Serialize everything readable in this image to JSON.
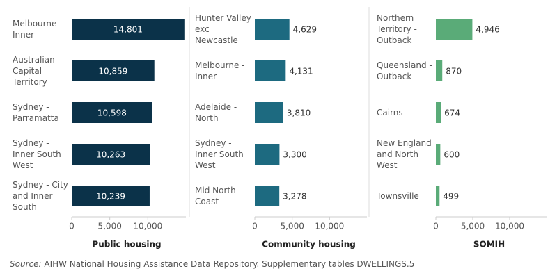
{
  "chart_data": [
    {
      "type": "bar",
      "orientation": "horizontal",
      "x_label": "Public housing",
      "categories": [
        "Melbourne - Inner",
        "Australian Capital Territory",
        "Sydney - Parramatta",
        "Sydney - Inner South West",
        "Sydney - City and Inner South"
      ],
      "values": [
        14801,
        10859,
        10598,
        10263,
        10239
      ],
      "value_labels": [
        "14,801",
        "10,859",
        "10,598",
        "10,263",
        "10,239"
      ],
      "value_label_position": "inside",
      "color": "#0b3249",
      "xlim": [
        0,
        15000
      ],
      "xticks": [
        0,
        {
          "value": 5000,
          "label": "5,000"
        },
        {
          "value": 10000,
          "label": "10,000"
        }
      ]
    },
    {
      "type": "bar",
      "orientation": "horizontal",
      "x_label": "Community housing",
      "categories": [
        "Hunter Valley exc Newcastle",
        "Melbourne - Inner",
        "Adelaide - North",
        "Sydney - Inner South West",
        "Mid North Coast"
      ],
      "values": [
        4629,
        4131,
        3810,
        3300,
        3278
      ],
      "value_labels": [
        "4,629",
        "4,131",
        "3,810",
        "3,300",
        "3,278"
      ],
      "value_label_position": "outside",
      "color": "#1d6a80",
      "xlim": [
        0,
        15000
      ],
      "xticks": [
        0,
        {
          "value": 5000,
          "label": "5,000"
        },
        {
          "value": 10000,
          "label": "10,000"
        }
      ]
    },
    {
      "type": "bar",
      "orientation": "horizontal",
      "x_label": "SOMIH",
      "categories": [
        "Northern Territory - Outback",
        "Queensland - Outback",
        "Cairns",
        "New England and North West",
        "Townsville"
      ],
      "values": [
        4946,
        870,
        674,
        600,
        499
      ],
      "value_labels": [
        "4,946",
        "870",
        "674",
        "600",
        "499"
      ],
      "value_label_position": "outside",
      "color": "#5aab78",
      "xlim": [
        0,
        15000
      ],
      "xticks": [
        0,
        {
          "value": 5000,
          "label": "5,000"
        },
        {
          "value": 10000,
          "label": "10,000"
        }
      ]
    }
  ],
  "source": {
    "label": "Source:",
    "text": "AIHW National Housing Assistance Data Repository. Supplementary tables DWELLINGS.5"
  }
}
